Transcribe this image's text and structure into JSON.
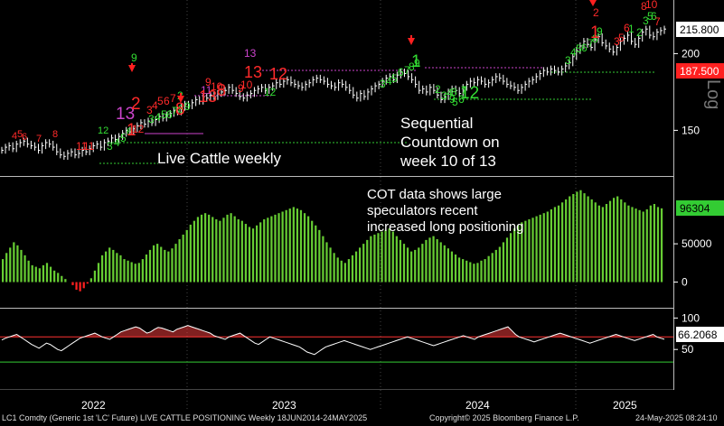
{
  "annotations": {
    "price_label": "Live Cattle weekly",
    "sequential_line1": "Sequential",
    "sequential_line2": "Countdown on",
    "sequential_line3": "week 10 of 13",
    "cot_line1": "COT data shows large",
    "cot_line2": "speculators recent",
    "cot_line3": "increased long positioning"
  },
  "footer": {
    "left": "LC1 Comdty (Generic 1st 'LC' Future) LIVE CATTLE POSITIONING  Weekly 18JUN2014-24MAY2025",
    "center": "Copyright© 2025 Bloomberg Finance L.P.",
    "right": "24-May-2025 08:24:10"
  },
  "colors": {
    "background": "#000000",
    "price_bar": "#ffffff",
    "setup_count": "#33dd33",
    "countdown_count": "#ff2a2a",
    "count_13": "#cc44cc",
    "cot_positive": "#66cc33",
    "cot_negative": "#ff2020",
    "rsi_upper_line": "#ff3333",
    "rsi_lower_line": "#33cc33",
    "current_price_tag": "#ffffff",
    "red_tag": "#ff2020",
    "cot_tag": "#33cc33"
  },
  "chart_data": [
    {
      "type": "line",
      "panel": "price",
      "title": "",
      "xlabel": "",
      "ylabel": "",
      "x_axis_labels": [
        "2022",
        "2023",
        "2024",
        "2025"
      ],
      "yticks": [
        150,
        200
      ],
      "ylim": [
        122,
        232
      ],
      "current_value_tag": "215.800",
      "secondary_tag": "187.500",
      "axis_word": "Log",
      "series": [
        {
          "values": [
            137,
            139,
            140,
            138,
            141,
            142,
            143,
            141,
            140,
            139,
            137,
            140,
            142,
            141,
            139,
            136,
            134,
            133,
            135,
            136,
            134,
            135,
            137,
            136,
            138,
            140,
            141,
            139,
            142,
            143,
            145,
            144,
            146,
            148,
            150,
            149,
            151,
            153,
            155,
            154,
            156,
            155,
            157,
            159,
            158,
            160,
            161,
            163,
            162,
            165,
            167,
            166,
            168,
            170,
            169,
            172,
            171,
            173,
            172,
            174,
            175,
            176,
            178,
            176,
            174,
            172,
            171,
            173,
            174,
            176,
            177,
            178,
            176,
            178,
            179,
            181,
            180,
            182,
            183,
            181,
            180,
            179,
            178,
            180,
            181,
            183,
            184,
            183,
            182,
            180,
            179,
            178,
            181,
            180,
            178,
            176,
            173,
            171,
            174,
            172,
            175,
            177,
            179,
            180,
            182,
            184,
            185,
            183,
            186,
            188,
            187,
            185,
            183,
            180,
            176,
            177,
            175,
            178,
            176,
            173,
            170,
            172,
            175,
            177,
            176,
            174,
            178,
            180,
            182,
            181,
            183,
            182,
            180,
            181,
            183,
            185,
            184,
            182,
            180,
            179,
            178,
            176,
            178,
            180,
            182,
            183,
            185,
            187,
            189,
            188,
            190,
            189,
            188,
            190,
            192,
            194,
            198,
            202,
            205,
            208,
            206,
            204,
            209,
            211,
            207,
            205,
            203,
            201,
            204,
            208,
            210,
            212,
            208,
            206,
            210,
            214,
            216,
            212,
            211,
            214,
            215,
            216
          ]
        }
      ]
    },
    {
      "type": "bar",
      "panel": "cot",
      "title": "",
      "xlabel": "",
      "ylabel": "",
      "yticks": [
        0,
        50000
      ],
      "ylim": [
        -30000,
        135000
      ],
      "current_value_tag": "96304",
      "series": [
        {
          "values": [
            30000,
            38000,
            45000,
            52000,
            48000,
            42000,
            35000,
            28000,
            22000,
            20000,
            18000,
            22000,
            25000,
            20000,
            15000,
            12000,
            8000,
            4000,
            0,
            -4000,
            -10000,
            -12000,
            -8000,
            -2000,
            5000,
            15000,
            25000,
            35000,
            40000,
            45000,
            42000,
            38000,
            35000,
            30000,
            28000,
            26000,
            24000,
            25000,
            30000,
            36000,
            42000,
            48000,
            50000,
            46000,
            42000,
            40000,
            44000,
            50000,
            56000,
            62000,
            68000,
            75000,
            80000,
            85000,
            88000,
            90000,
            88000,
            85000,
            82000,
            80000,
            84000,
            88000,
            90000,
            86000,
            82000,
            80000,
            76000,
            72000,
            70000,
            74000,
            78000,
            82000,
            84000,
            86000,
            88000,
            90000,
            92000,
            94000,
            96000,
            98000,
            96000,
            94000,
            90000,
            86000,
            80000,
            74000,
            68000,
            60000,
            52000,
            45000,
            38000,
            32000,
            28000,
            25000,
            30000,
            35000,
            40000,
            45000,
            50000,
            55000,
            60000,
            62000,
            64000,
            66000,
            68000,
            70000,
            66000,
            60000,
            55000,
            50000,
            45000,
            40000,
            42000,
            45000,
            50000,
            55000,
            58000,
            60000,
            56000,
            52000,
            48000,
            44000,
            40000,
            36000,
            32000,
            30000,
            28000,
            26000,
            24000,
            25000,
            28000,
            30000,
            34000,
            38000,
            42000,
            46000,
            52000,
            58000,
            64000,
            70000,
            74000,
            78000,
            80000,
            82000,
            84000,
            86000,
            88000,
            90000,
            92000,
            95000,
            98000,
            100000,
            104000,
            108000,
            112000,
            115000,
            118000,
            120000,
            116000,
            112000,
            108000,
            104000,
            100000,
            98000,
            102000,
            106000,
            110000,
            112000,
            108000,
            104000,
            100000,
            98000,
            96000,
            94000,
            92000,
            95000,
            100000,
            102000,
            98000,
            96304
          ]
        }
      ]
    },
    {
      "type": "line",
      "panel": "rsi",
      "title": "",
      "xlabel": "",
      "ylabel": "",
      "yticks": [
        50,
        100
      ],
      "ylim": [
        -10,
        112
      ],
      "reference_lines": [
        70,
        30
      ],
      "current_value_tag": "66.2068",
      "series": [
        {
          "values": [
            65,
            68,
            70,
            72,
            74,
            70,
            66,
            62,
            58,
            55,
            52,
            56,
            60,
            58,
            54,
            50,
            48,
            52,
            56,
            60,
            64,
            68,
            70,
            72,
            74,
            76,
            73,
            70,
            68,
            66,
            70,
            74,
            78,
            80,
            82,
            84,
            86,
            84,
            80,
            76,
            78,
            82,
            85,
            84,
            82,
            80,
            78,
            82,
            84,
            86,
            88,
            86,
            84,
            82,
            80,
            78,
            76,
            72,
            70,
            68,
            66,
            70,
            72,
            74,
            76,
            72,
            68,
            64,
            60,
            58,
            62,
            66,
            70,
            68,
            66,
            64,
            62,
            60,
            58,
            56,
            54,
            50,
            46,
            44,
            42,
            46,
            50,
            54,
            56,
            58,
            60,
            62,
            64,
            62,
            60,
            58,
            56,
            54,
            52,
            50,
            52,
            54,
            56,
            58,
            60,
            62,
            64,
            66,
            68,
            70,
            68,
            66,
            64,
            62,
            60,
            58,
            56,
            58,
            60,
            62,
            64,
            66,
            68,
            70,
            72,
            70,
            68,
            66,
            70,
            72,
            74,
            76,
            78,
            80,
            82,
            84,
            86,
            80,
            74,
            70,
            68,
            66,
            64,
            62,
            64,
            66,
            68,
            70,
            72,
            74,
            76,
            74,
            72,
            70,
            68,
            66,
            64,
            62,
            60,
            62,
            64,
            66,
            68,
            70,
            72,
            74,
            72,
            70,
            68,
            66,
            64,
            66,
            68,
            70,
            72,
            74,
            70,
            68,
            66.2
          ]
        }
      ]
    }
  ],
  "demark_counts": {
    "setup_labels": [
      "1",
      "2",
      "3",
      "4",
      "5",
      "6",
      "7",
      "8",
      "9"
    ],
    "countdown_labels": [
      "1",
      "2",
      "3",
      "4",
      "5",
      "6",
      "7",
      "8",
      "9",
      "10",
      "11",
      "12",
      "13"
    ],
    "visible_labels": [
      {
        "text": "4",
        "color": "countdown"
      },
      {
        "text": "5",
        "color": "countdown"
      },
      {
        "text": "6",
        "color": "countdown"
      },
      {
        "text": "7",
        "color": "countdown"
      },
      {
        "text": "8",
        "color": "countdown"
      },
      {
        "text": "11",
        "color": "countdown"
      },
      {
        "text": "11",
        "color": "countdown"
      },
      {
        "text": "12",
        "color": "setup"
      },
      {
        "text": "3",
        "color": "setup"
      },
      {
        "text": "4",
        "color": "setup"
      },
      {
        "text": "5",
        "color": "setup"
      },
      {
        "text": "6",
        "color": "setup"
      },
      {
        "text": "12",
        "color": "countdown"
      },
      {
        "text": "13",
        "color": "count13"
      },
      {
        "text": "1",
        "color": "countdown"
      },
      {
        "text": "9",
        "color": "setup"
      },
      {
        "text": "2",
        "color": "countdown"
      },
      {
        "text": "3",
        "color": "countdown"
      },
      {
        "text": "4",
        "color": "countdown"
      },
      {
        "text": "5",
        "color": "countdown"
      },
      {
        "text": "6",
        "color": "countdown"
      },
      {
        "text": "7",
        "color": "countdown"
      },
      {
        "text": "2",
        "color": "setup"
      },
      {
        "text": "3",
        "color": "setup"
      },
      {
        "text": "4",
        "color": "setup"
      },
      {
        "text": "5",
        "color": "setup"
      },
      {
        "text": "6",
        "color": "setup"
      },
      {
        "text": "7",
        "color": "setup"
      },
      {
        "text": "8",
        "color": "setup"
      },
      {
        "text": "9",
        "color": "setup"
      },
      {
        "text": "8",
        "color": "countdown"
      },
      {
        "text": "9",
        "color": "countdown"
      },
      {
        "text": "10",
        "color": "countdown"
      },
      {
        "text": "11",
        "color": "count13"
      },
      {
        "text": "13",
        "color": "countdown"
      },
      {
        "text": "8",
        "color": "countdown"
      },
      {
        "text": "9",
        "color": "countdown"
      },
      {
        "text": "10",
        "color": "countdown"
      },
      {
        "text": "13",
        "color": "count13"
      },
      {
        "text": "13",
        "color": "countdown"
      },
      {
        "text": "12",
        "color": "countdown"
      },
      {
        "text": "12",
        "color": "setup"
      },
      {
        "text": "3",
        "color": "setup"
      },
      {
        "text": "4",
        "color": "setup"
      },
      {
        "text": "5",
        "color": "setup"
      },
      {
        "text": "6",
        "color": "setup"
      },
      {
        "text": "7",
        "color": "setup"
      },
      {
        "text": "8",
        "color": "setup"
      },
      {
        "text": "9",
        "color": "setup"
      },
      {
        "text": "1",
        "color": "setup"
      },
      {
        "text": "2",
        "color": "setup"
      },
      {
        "text": "3",
        "color": "setup"
      },
      {
        "text": "4",
        "color": "setup"
      },
      {
        "text": "5",
        "color": "setup"
      },
      {
        "text": "6",
        "color": "setup"
      },
      {
        "text": "7",
        "color": "setup"
      },
      {
        "text": "8",
        "color": "setup"
      },
      {
        "text": "9",
        "color": "setup"
      },
      {
        "text": "12",
        "color": "setup"
      },
      {
        "text": "3",
        "color": "setup"
      },
      {
        "text": "4",
        "color": "setup"
      },
      {
        "text": "5",
        "color": "setup"
      },
      {
        "text": "6",
        "color": "setup"
      },
      {
        "text": "7",
        "color": "setup"
      },
      {
        "text": "8",
        "color": "setup"
      },
      {
        "text": "9",
        "color": "setup"
      },
      {
        "text": "1",
        "color": "countdown"
      },
      {
        "text": "2",
        "color": "countdown"
      },
      {
        "text": "3",
        "color": "countdown"
      },
      {
        "text": "5",
        "color": "countdown"
      },
      {
        "text": "6",
        "color": "countdown"
      },
      {
        "text": "1",
        "color": "setup"
      },
      {
        "text": "2",
        "color": "setup"
      },
      {
        "text": "3",
        "color": "setup"
      },
      {
        "text": "5",
        "color": "setup"
      },
      {
        "text": "6",
        "color": "setup"
      },
      {
        "text": "7",
        "color": "countdown"
      },
      {
        "text": "8",
        "color": "countdown"
      },
      {
        "text": "10",
        "color": "countdown"
      }
    ]
  }
}
